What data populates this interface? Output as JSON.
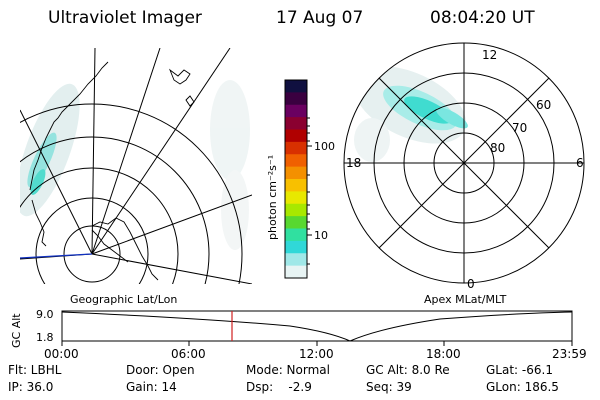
{
  "header": {
    "instrument": "Ultraviolet Imager",
    "date": "17 Aug 07",
    "time": "08:04:20 UT"
  },
  "colorbar": {
    "unit_label": "photon cm⁻²s⁻¹",
    "ticks": [
      "100",
      "10"
    ],
    "colors": [
      "#101040",
      "#3a0040",
      "#6a0060",
      "#8a0030",
      "#b00000",
      "#d83000",
      "#f06000",
      "#f49000",
      "#f8c000",
      "#e8e800",
      "#a8e800",
      "#58d830",
      "#30e0a0",
      "#30d8d8",
      "#a0e8e8",
      "#e8f4f4"
    ]
  },
  "polar_plot": {
    "mlt_labels": [
      "12",
      "18",
      "6",
      "0"
    ],
    "mlat_labels": [
      "60",
      "70",
      "80"
    ]
  },
  "left_panel": {
    "caption": "Geographic Lat/Lon"
  },
  "right_panel": {
    "caption": "Apex MLat/MLT"
  },
  "altitude_plot": {
    "ylabel": "GC Alt",
    "yticks": [
      "9.0",
      "1.8"
    ],
    "xticks": [
      "00:00",
      "06:00",
      "12:00",
      "18:00",
      "23:59"
    ]
  },
  "status": {
    "filter": "Flt: LBHL",
    "door": "Door: Open",
    "mode": "Mode: Normal",
    "gc_alt": "GC Alt: 8.0 Re",
    "glat": "GLat: -66.1",
    "ip": "IP: 36.0",
    "gain": "Gain: 14",
    "dsp": "Dsp:    -2.9",
    "seq": "Seq: 39",
    "glon": "GLon: 186.5"
  }
}
